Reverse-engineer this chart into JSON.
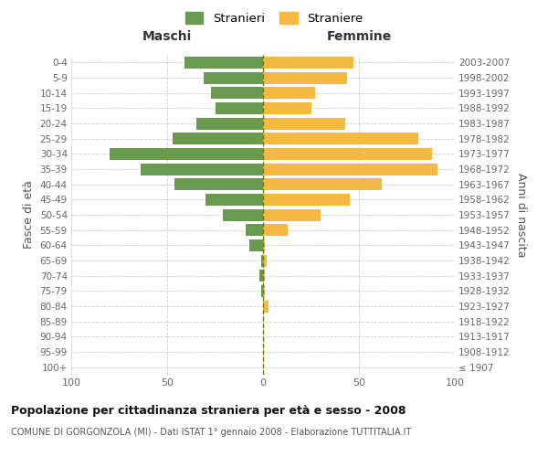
{
  "age_groups": [
    "100+",
    "95-99",
    "90-94",
    "85-89",
    "80-84",
    "75-79",
    "70-74",
    "65-69",
    "60-64",
    "55-59",
    "50-54",
    "45-49",
    "40-44",
    "35-39",
    "30-34",
    "25-29",
    "20-24",
    "15-19",
    "10-14",
    "5-9",
    "0-4"
  ],
  "birth_years": [
    "≤ 1907",
    "1908-1912",
    "1913-1917",
    "1918-1922",
    "1923-1927",
    "1928-1932",
    "1933-1937",
    "1938-1942",
    "1943-1947",
    "1948-1952",
    "1953-1957",
    "1958-1962",
    "1963-1967",
    "1968-1972",
    "1973-1977",
    "1978-1982",
    "1983-1987",
    "1988-1992",
    "1993-1997",
    "1998-2002",
    "2003-2007"
  ],
  "maschi": [
    0,
    0,
    0,
    0,
    0,
    1,
    2,
    1,
    7,
    9,
    21,
    30,
    46,
    64,
    80,
    47,
    35,
    25,
    27,
    31,
    41
  ],
  "femmine": [
    0,
    0,
    0,
    0,
    3,
    1,
    1,
    2,
    1,
    13,
    30,
    45,
    62,
    91,
    88,
    81,
    43,
    25,
    27,
    44,
    47
  ],
  "color_maschi": "#6a9a50",
  "color_femmine": "#f5b942",
  "color_centerline": "#7a7a00",
  "xlim": 100,
  "title": "Popolazione per cittadinanza straniera per età e sesso - 2008",
  "subtitle": "COMUNE DI GORGONZOLA (MI) - Dati ISTAT 1° gennaio 2008 - Elaborazione TUTTITALIA.IT",
  "ylabel_left": "Fasce di età",
  "ylabel_right": "Anni di nascita",
  "label_maschi": "Stranieri",
  "label_femmine": "Straniere",
  "header_maschi": "Maschi",
  "header_femmine": "Femmine",
  "bg_color": "#ffffff",
  "grid_color": "#cccccc"
}
